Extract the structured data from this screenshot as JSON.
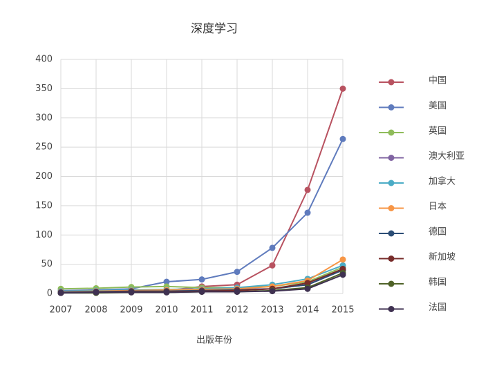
{
  "chart_data": {
    "type": "line",
    "title": "深度学习",
    "x_label": "出版年份",
    "x": [
      2007,
      2008,
      2009,
      2010,
      2011,
      2012,
      2013,
      2014,
      2015
    ],
    "xlim": [
      2007,
      2015
    ],
    "xticks": [
      2007,
      2008,
      2009,
      2010,
      2011,
      2012,
      2013,
      2014,
      2015
    ],
    "ylim": [
      0,
      400
    ],
    "yticks": [
      0,
      50,
      100,
      150,
      200,
      250,
      300,
      350,
      400
    ],
    "grid": true,
    "legend": "right",
    "series": [
      {
        "name": "中国",
        "color": "#b85260",
        "values": [
          2,
          3,
          4,
          5,
          12,
          15,
          48,
          177,
          350
        ]
      },
      {
        "name": "美国",
        "color": "#5f7bbd",
        "values": [
          5,
          6,
          8,
          20,
          24,
          37,
          78,
          138,
          264
        ]
      },
      {
        "name": "英国",
        "color": "#8fbc5a",
        "values": [
          8,
          9,
          11,
          12,
          10,
          10,
          12,
          20,
          45
        ]
      },
      {
        "name": "澳大利亚",
        "color": "#8064a2",
        "values": [
          3,
          4,
          5,
          5,
          6,
          7,
          8,
          15,
          40
        ]
      },
      {
        "name": "加拿大",
        "color": "#4bacc6",
        "values": [
          4,
          5,
          6,
          7,
          8,
          10,
          15,
          25,
          48
        ]
      },
      {
        "name": "日本",
        "color": "#f79646",
        "values": [
          3,
          4,
          5,
          6,
          7,
          8,
          12,
          22,
          58
        ]
      },
      {
        "name": "德国",
        "color": "#2c4d75",
        "values": [
          2,
          3,
          4,
          4,
          5,
          6,
          8,
          15,
          40
        ]
      },
      {
        "name": "新加坡",
        "color": "#772c2a",
        "values": [
          1,
          2,
          3,
          3,
          4,
          5,
          8,
          18,
          42
        ]
      },
      {
        "name": "韩国",
        "color": "#4f6228",
        "values": [
          1,
          1,
          2,
          2,
          3,
          3,
          5,
          10,
          35
        ]
      },
      {
        "name": "法国",
        "color": "#3f3151",
        "values": [
          1,
          2,
          2,
          2,
          3,
          3,
          4,
          8,
          32
        ]
      }
    ]
  }
}
